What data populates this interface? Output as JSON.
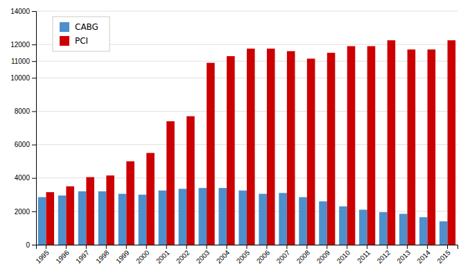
{
  "chart_data": {
    "type": "bar",
    "categories": [
      "1995",
      "1996",
      "1997",
      "1998",
      "1999",
      "2000",
      "2001",
      "2002",
      "2003",
      "2004",
      "2005",
      "2006",
      "2007",
      "2008",
      "2009",
      "2010",
      "2011",
      "2012",
      "2013",
      "2014",
      "2015"
    ],
    "series": [
      {
        "name": "CABG",
        "color": "#4E8FCC",
        "values": [
          2850,
          2950,
          3200,
          3200,
          3050,
          3000,
          3250,
          3350,
          3400,
          3400,
          3250,
          3050,
          3100,
          2850,
          2600,
          2300,
          2100,
          1950,
          1850,
          1650,
          1400
        ]
      },
      {
        "name": "PCI",
        "color": "#CC0000",
        "values": [
          3150,
          3500,
          4050,
          4150,
          5000,
          5500,
          7400,
          7700,
          10900,
          11300,
          11750,
          11750,
          11600,
          11150,
          11500,
          11900,
          11900,
          12250,
          11700,
          11700,
          12250
        ]
      }
    ],
    "ylim": [
      0,
      14000
    ],
    "yticks": [
      0,
      2000,
      4000,
      6000,
      8000,
      10000,
      11000,
      12000,
      14000
    ],
    "grid": true,
    "legend": "upper-left"
  }
}
